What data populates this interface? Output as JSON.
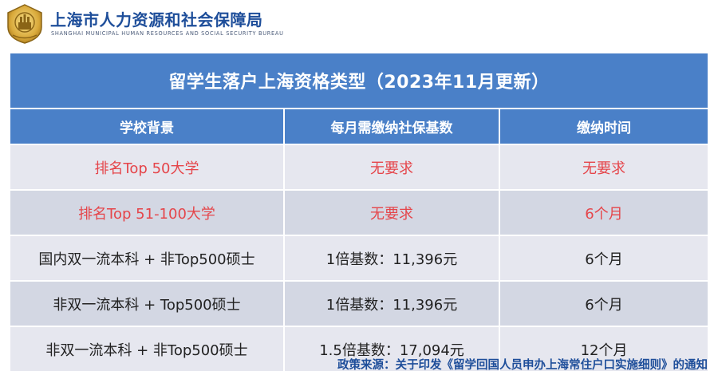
{
  "header": {
    "org_cn": "上海市人力资源和社会保障局",
    "org_en": "SHANGHAI MUNICIPAL HUMAN RESOURCES AND SOCIAL SECURITY BUREAU",
    "logo_icon": "emblem-logo-icon"
  },
  "table": {
    "title": "留学生落户上海资格类型（2023年11月更新）",
    "headers": [
      "学校背景",
      "每月需缴纳社保基数",
      "缴纳时间"
    ],
    "rows": [
      [
        "排名Top 50大学",
        "无要求",
        "无要求"
      ],
      [
        "排名Top 51-100大学",
        "无要求",
        "6个月"
      ],
      [
        "国内双一流本科 + 非Top500硕士",
        "1倍基数：11,396元",
        "6个月"
      ],
      [
        "非双一流本科 + Top500硕士",
        "1倍基数：11,396元",
        "6个月"
      ],
      [
        "非双一流本科 + 非Top500硕士",
        "1.5倍基数：17,094元",
        "12个月"
      ]
    ]
  },
  "footer": {
    "source": "政策来源：关于印发《留学回国人员申办上海常住户口实施细则》的通知"
  },
  "colors": {
    "brand_blue": "#1e4e9a",
    "header_fill": "#4a80c8",
    "highlight_red": "#e5454a",
    "row_light": "#e6e7ef",
    "row_dark": "#d3d7e3"
  }
}
